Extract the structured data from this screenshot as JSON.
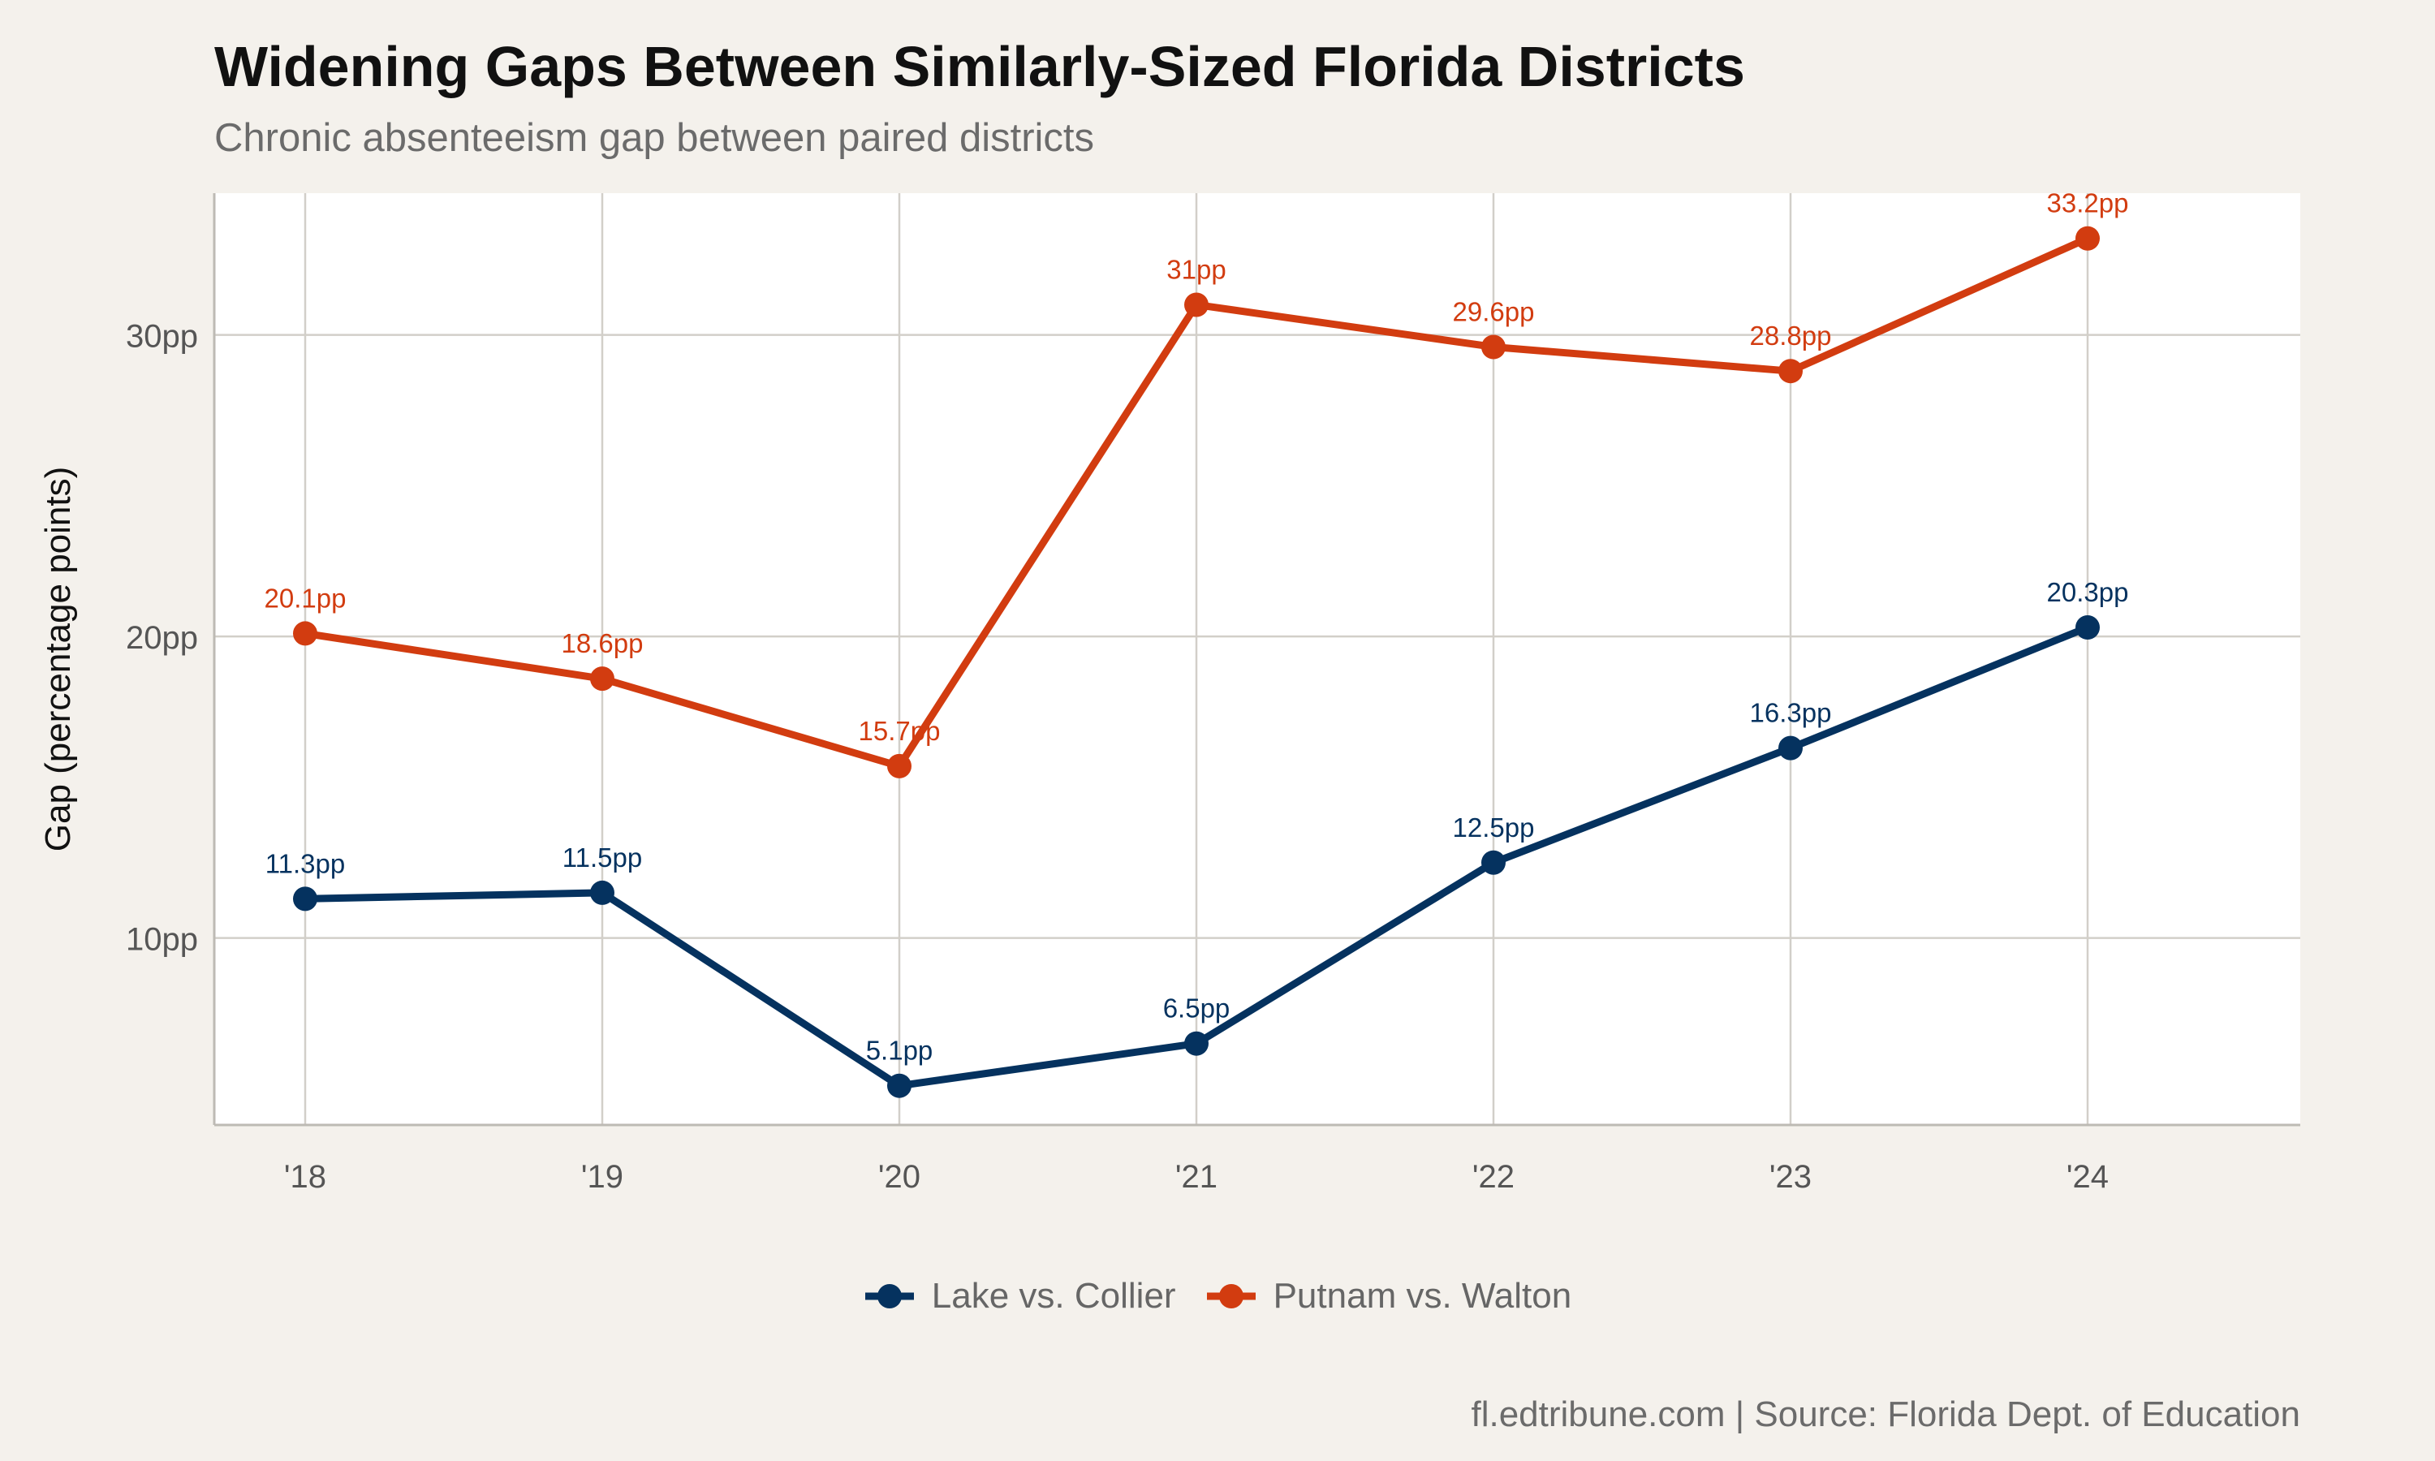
{
  "chart_data": {
    "type": "line",
    "title": "Widening Gaps Between Similarly-Sized Florida Districts",
    "subtitle": "Chronic absenteeism gap between paired districts",
    "xlabel": "",
    "ylabel": "Gap (percentage points)",
    "categories": [
      "'18",
      "'19",
      "'20",
      "'21",
      "'22",
      "'23",
      "'24"
    ],
    "ylim": [
      3.8,
      34.7
    ],
    "yticks": [
      10,
      20,
      30
    ],
    "ytick_labels": [
      "10pp",
      "20pp",
      "30pp"
    ],
    "grid": true,
    "legend_position": "bottom",
    "series": [
      {
        "name": "Lake vs. Collier",
        "color": "#05325f",
        "values": [
          11.3,
          11.5,
          5.1,
          6.5,
          12.5,
          16.3,
          20.3
        ],
        "labels": [
          "11.3pp",
          "11.5pp",
          "5.1pp",
          "6.5pp",
          "12.5pp",
          "16.3pp",
          "20.3pp"
        ]
      },
      {
        "name": "Putnam vs. Walton",
        "color": "#d23c10",
        "values": [
          20.1,
          18.6,
          15.7,
          31.0,
          29.6,
          28.8,
          33.2
        ],
        "labels": [
          "20.1pp",
          "18.6pp",
          "15.7pp",
          "31pp",
          "29.6pp",
          "28.8pp",
          "33.2pp"
        ]
      }
    ],
    "caption": "fl.edtribune.com | Source: Florida Dept. of Education"
  }
}
